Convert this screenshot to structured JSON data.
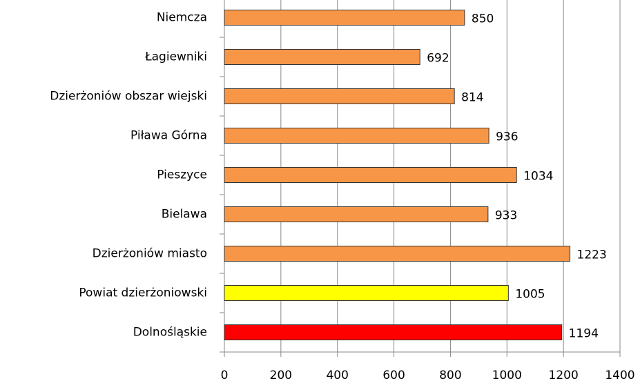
{
  "chart_data": {
    "type": "bar",
    "orientation": "horizontal",
    "categories": [
      "Niemcza",
      "Łagiewniki",
      "Dzierżoniów obszar wiejski",
      "Piława Górna",
      "Pieszyce",
      "Bielawa",
      "Dzierżoniów miasto",
      "Powiat dzierżoniowski",
      "Dolnośląskie"
    ],
    "values": [
      850,
      692,
      814,
      936,
      1034,
      933,
      1223,
      1005,
      1194
    ],
    "colors": [
      "#f79646",
      "#f79646",
      "#f79646",
      "#f79646",
      "#f79646",
      "#f79646",
      "#f79646",
      "#ffff00",
      "#ff0000"
    ],
    "xlim": [
      0,
      1400
    ],
    "xticks": [
      0,
      200,
      400,
      600,
      800,
      1000,
      1200,
      1400
    ],
    "grid": true
  }
}
